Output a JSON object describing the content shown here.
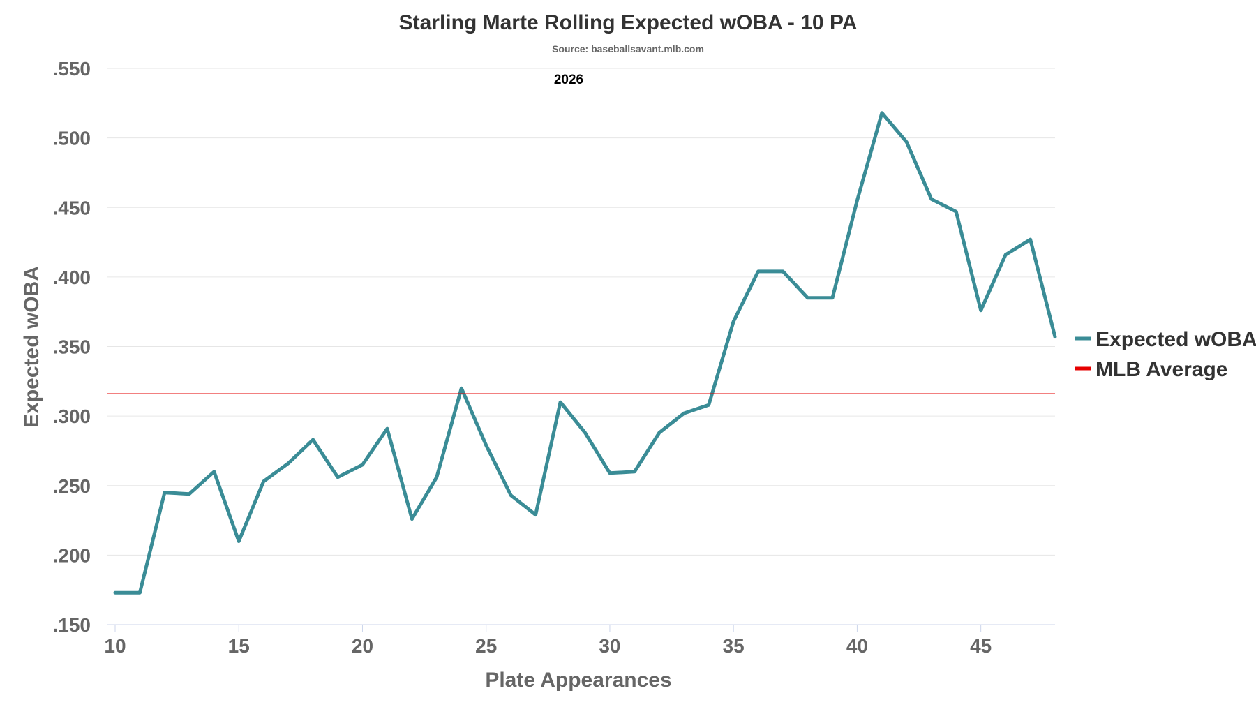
{
  "chart_data": {
    "type": "line",
    "title": "Starling Marte Rolling Expected wOBA - 10 PA",
    "subtitle": "Source: baseballsavant.mlb.com",
    "season_label": "2026",
    "xlabel": "Plate Appearances",
    "ylabel": "Expected wOBA",
    "xlim": [
      10,
      48
    ],
    "ylim": [
      0.15,
      0.55
    ],
    "x_ticks": [
      10,
      15,
      20,
      25,
      30,
      35,
      40,
      45
    ],
    "x_tick_labels": [
      "10",
      "15",
      "20",
      "25",
      "30",
      "35",
      "40",
      "45"
    ],
    "y_ticks": [
      0.15,
      0.2,
      0.25,
      0.3,
      0.35,
      0.4,
      0.45,
      0.5,
      0.55
    ],
    "y_tick_labels": [
      ".150",
      ".200",
      ".250",
      ".300",
      ".350",
      ".400",
      ".450",
      ".500",
      ".550"
    ],
    "grid": true,
    "legend_position": "right",
    "series": [
      {
        "name": "Expected wOBA",
        "color": "#3a8c96",
        "x": [
          10,
          11,
          12,
          13,
          14,
          15,
          16,
          17,
          18,
          19,
          20,
          21,
          22,
          23,
          24,
          25,
          26,
          27,
          28,
          29,
          30,
          31,
          32,
          33,
          34,
          35,
          36,
          37,
          38,
          39,
          40,
          41,
          42,
          43,
          44,
          45,
          46,
          47,
          48
        ],
        "values": [
          0.173,
          0.173,
          0.245,
          0.244,
          0.26,
          0.21,
          0.253,
          0.266,
          0.283,
          0.256,
          0.265,
          0.291,
          0.226,
          0.256,
          0.32,
          0.279,
          0.243,
          0.229,
          0.31,
          0.288,
          0.259,
          0.26,
          0.288,
          0.302,
          0.308,
          0.368,
          0.404,
          0.404,
          0.385,
          0.385,
          0.455,
          0.518,
          0.497,
          0.456,
          0.447,
          0.376,
          0.416,
          0.427,
          0.357
        ]
      },
      {
        "name": "MLB Average",
        "color": "#e60000",
        "constant": 0.316
      }
    ]
  }
}
